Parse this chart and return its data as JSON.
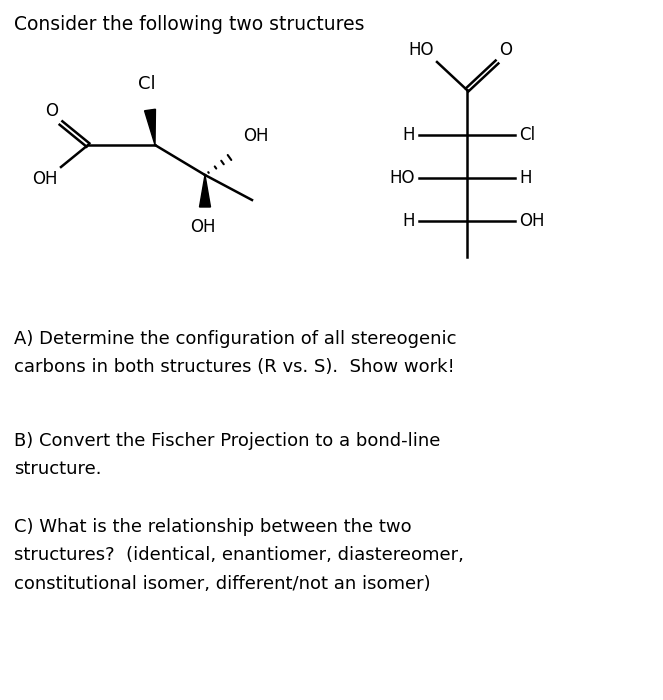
{
  "title": "Consider the following two structures",
  "title_fontsize": 13.5,
  "bg_color": "#ffffff",
  "text_color": "#000000",
  "question_A": "A) Determine the configuration of all stereogenic\ncarbons in both structures (R vs. S).  Show work!",
  "question_B": "B) Convert the Fischer Projection to a bond-line\nstructure.",
  "question_C": "C) What is the relationship between the two\nstructures?  (identical, enantiomer, diastereomer,\nconstitutional isomer, different/not an isomer)",
  "fontsize_questions": 13.0,
  "lw": 1.8
}
